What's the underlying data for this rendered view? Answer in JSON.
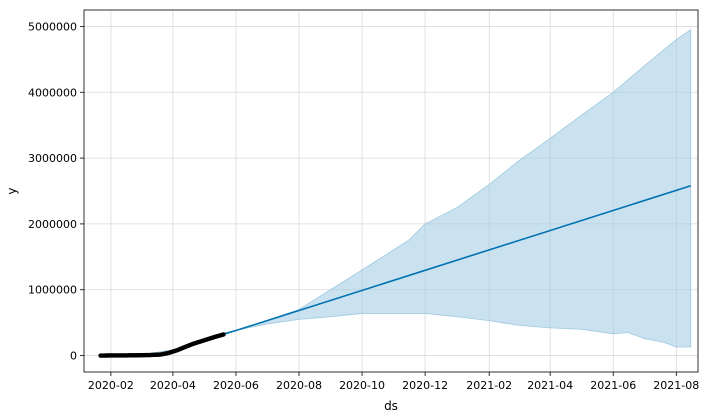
{
  "chart_data": {
    "type": "line",
    "title": "",
    "xlabel": "ds",
    "ylabel": "y",
    "x_axis_type": "date",
    "xlim": [
      "2020-01-06",
      "2021-08-22"
    ],
    "ylim": [
      -250000,
      5250000
    ],
    "x_ticks": [
      "2020-02",
      "2020-04",
      "2020-06",
      "2020-08",
      "2020-10",
      "2020-12",
      "2021-02",
      "2021-04",
      "2021-06",
      "2021-08"
    ],
    "y_ticks": [
      0,
      1000000,
      2000000,
      3000000,
      4000000,
      5000000
    ],
    "grid": true,
    "legend": "none",
    "colors": {
      "observed": "#000000",
      "forecast": "#0072B2",
      "interval_fill": "#9ecae1",
      "grid": "#d9d9d9"
    },
    "series": [
      {
        "kind": "observed-points",
        "points": [
          [
            "2020-01-22",
            0
          ],
          [
            "2020-02-01",
            1000
          ],
          [
            "2020-02-15",
            2000
          ],
          [
            "2020-03-01",
            5000
          ],
          [
            "2020-03-10",
            8000
          ],
          [
            "2020-03-20",
            15000
          ],
          [
            "2020-03-28",
            40000
          ],
          [
            "2020-04-05",
            80000
          ],
          [
            "2020-04-12",
            125000
          ],
          [
            "2020-04-20",
            175000
          ],
          [
            "2020-04-28",
            215000
          ],
          [
            "2020-05-05",
            250000
          ],
          [
            "2020-05-12",
            285000
          ],
          [
            "2020-05-20",
            320000
          ]
        ]
      },
      {
        "kind": "forecast-line",
        "points": [
          [
            "2020-01-22",
            0
          ],
          [
            "2020-03-05",
            5000
          ],
          [
            "2020-03-20",
            20000
          ],
          [
            "2020-04-05",
            85000
          ],
          [
            "2020-04-20",
            180000
          ],
          [
            "2020-05-05",
            255000
          ],
          [
            "2020-05-20",
            325000
          ],
          [
            "2020-06-01",
            380000
          ],
          [
            "2021-08-15",
            2580000
          ]
        ]
      },
      {
        "kind": "uncertainty-interval",
        "upper": [
          [
            "2020-01-22",
            15000
          ],
          [
            "2020-03-05",
            20000
          ],
          [
            "2020-04-05",
            100000
          ],
          [
            "2020-05-20",
            340000
          ],
          [
            "2020-06-01",
            380000
          ],
          [
            "2020-08-01",
            700000
          ],
          [
            "2020-10-01",
            1300000
          ],
          [
            "2020-11-15",
            1750000
          ],
          [
            "2020-12-01",
            2000000
          ],
          [
            "2021-01-01",
            2250000
          ],
          [
            "2021-02-01",
            2600000
          ],
          [
            "2021-03-01",
            2950000
          ],
          [
            "2021-04-01",
            3300000
          ],
          [
            "2021-05-01",
            3650000
          ],
          [
            "2021-06-01",
            4000000
          ],
          [
            "2021-07-01",
            4400000
          ],
          [
            "2021-08-01",
            4800000
          ],
          [
            "2021-08-15",
            4950000
          ]
        ],
        "lower": [
          [
            "2020-01-22",
            -15000
          ],
          [
            "2020-03-05",
            -10000
          ],
          [
            "2020-04-05",
            70000
          ],
          [
            "2020-05-20",
            310000
          ],
          [
            "2020-06-01",
            380000
          ],
          [
            "2020-07-01",
            480000
          ],
          [
            "2020-08-01",
            550000
          ],
          [
            "2020-09-01",
            590000
          ],
          [
            "2020-10-01",
            640000
          ],
          [
            "2020-11-01",
            640000
          ],
          [
            "2020-12-01",
            640000
          ],
          [
            "2021-01-01",
            590000
          ],
          [
            "2021-02-01",
            530000
          ],
          [
            "2021-03-01",
            460000
          ],
          [
            "2021-04-01",
            420000
          ],
          [
            "2021-05-01",
            400000
          ],
          [
            "2021-06-01",
            330000
          ],
          [
            "2021-06-15",
            350000
          ],
          [
            "2021-07-01",
            260000
          ],
          [
            "2021-07-20",
            200000
          ],
          [
            "2021-08-01",
            130000
          ],
          [
            "2021-08-15",
            130000
          ]
        ]
      }
    ]
  }
}
